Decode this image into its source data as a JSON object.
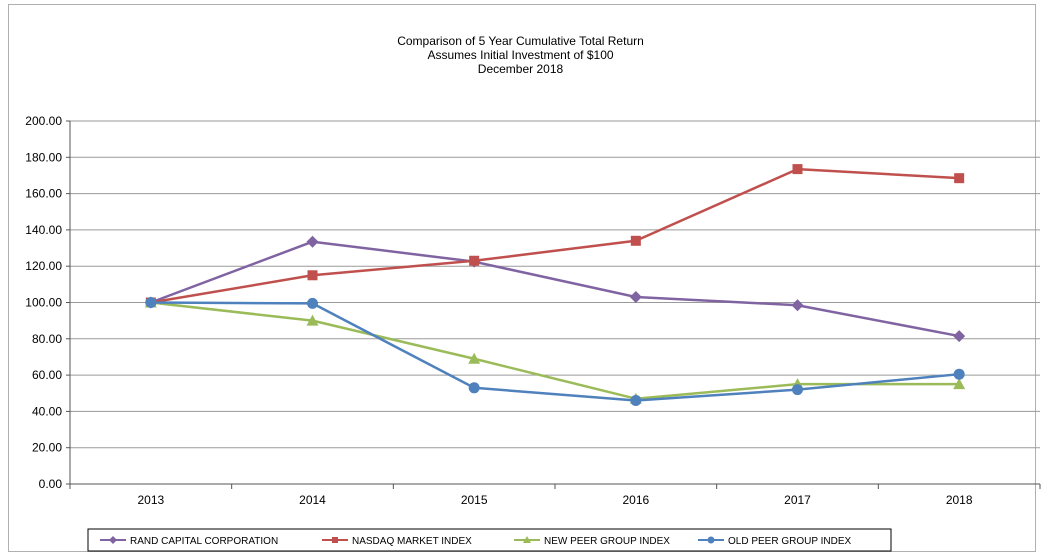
{
  "chart_data": {
    "type": "line",
    "title": "Comparison of 5 Year Cumulative Total Return",
    "subtitle": "Assumes Initial Investment of $100",
    "subtitle2": "December 2018",
    "xlabel": "",
    "ylabel": "",
    "x": [
      "2013",
      "2014",
      "2015",
      "2016",
      "2017",
      "2018"
    ],
    "ylim": [
      0,
      200
    ],
    "yticks": [
      "0.00",
      "20.00",
      "40.00",
      "60.00",
      "80.00",
      "100.00",
      "120.00",
      "140.00",
      "160.00",
      "180.00",
      "200.00"
    ],
    "grid": true,
    "legend_position": "bottom",
    "series": [
      {
        "name": "RAND CAPITAL CORPORATION",
        "color": "#8064a2",
        "marker": "diamond",
        "values": [
          100,
          133.5,
          122.5,
          103,
          98.5,
          81.5
        ]
      },
      {
        "name": "NASDAQ MARKET INDEX",
        "color": "#c0504d",
        "marker": "square",
        "values": [
          100,
          115,
          123,
          134,
          173.5,
          168.5
        ]
      },
      {
        "name": "NEW PEER GROUP INDEX",
        "color": "#9bbb59",
        "marker": "triangle",
        "values": [
          100,
          90,
          69,
          47,
          55,
          55
        ]
      },
      {
        "name": "OLD PEER GROUP INDEX",
        "color": "#4f81bd",
        "marker": "circle",
        "values": [
          100,
          99.5,
          53,
          46,
          52,
          60.5
        ]
      }
    ]
  }
}
